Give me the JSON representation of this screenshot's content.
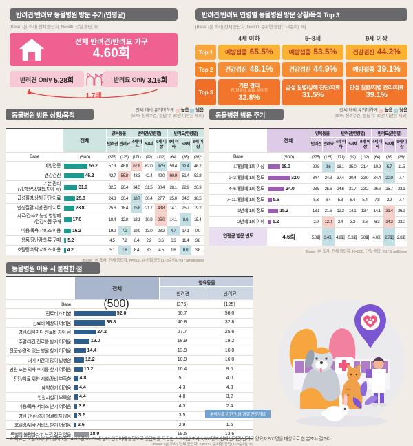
{
  "colors": {
    "accent_pink": "#ee6191",
    "light_pink": "#f7c9d6",
    "sig_high_bg": "#f6d0c8",
    "sig_low_bg": "#c2dfe6",
    "teal_bar": "#1b9b90",
    "teal_header": "#cfe5e1",
    "purple_bar": "#9b5fb0",
    "purple_header": "#ddcbe7",
    "navy_bar": "#2d5e8c",
    "gray_bar": "#8f9296",
    "top1_orange": "#f9b232",
    "top2_orange": "#f68d35",
    "top3_orange": "#f1762c",
    "title_bar_gray": "#69696c",
    "ratio_red": "#e8403a"
  },
  "sig_legend": {
    "prefix": "전체 대비 유의미하게",
    "high": "높음",
    "low": "낮음",
    "note": "(80% 신뢰수준, 응답 수 30건 미만은 제외)"
  },
  "chart_data": [
    {
      "type": "bar",
      "title": "반려견/반려묘 동물병원 방문 주기(연평균)",
      "base_note": "[Base: (본 조사) 전체 응답자, N=500, 단일 응답, %]",
      "total": {
        "label": "전체 반려견/반려묘 가구",
        "value": "4.60회"
      },
      "categories": [
        "전체 반려견/반려묘 가구",
        "반려견 Only",
        "반려묘 Only"
      ],
      "values": [
        4.6,
        5.28,
        3.16
      ],
      "unit": "회",
      "dog_only_label": "반려견 Only",
      "dog_only_value": "5.28회",
      "cat_only_label": "반려묘 Only",
      "cat_only_value": "3.16회",
      "ratio_label": "1.7배"
    },
    {
      "type": "table",
      "title": "반려견/반려묘 연령별 동물병원 방문 상황/목적 Top 3",
      "base_note": "[Base: (본 조사) 전체 응답자, N=500, 순위형 응답(1~3순위), %]",
      "age_groups": [
        "4세 이하",
        "5~8세",
        "9세 이상"
      ],
      "rows": [
        {
          "rank": "Top 1",
          "cells": [
            {
              "label": "예방접종",
              "value": "65.5%"
            },
            {
              "label": "예방접종",
              "value": "53.5%"
            },
            {
              "label": "건강검진",
              "value": "44.2%"
            }
          ]
        },
        {
          "rank": "Top 2",
          "cells": [
            {
              "label": "건강검진",
              "value": "48.1%"
            },
            {
              "label": "건강검진",
              "value": "44.9%"
            },
            {
              "label": "예방접종",
              "value": "39.1%"
            }
          ]
        },
        {
          "rank": "Top 3",
          "cells": [
            {
              "label": "기본 관리",
              "sub": "귀, 항문낭, 발톱, 치아 등",
              "value": "32.8%"
            },
            {
              "label": "급성 질병/상해 진단/치료",
              "value": "31.5%"
            },
            {
              "label": "만성 질환/지병 관리/치료",
              "value": "39.1%"
            }
          ]
        }
      ]
    },
    {
      "type": "table",
      "title": "동물병원 방문 상황/목적",
      "total_label": "전체",
      "col_groups": [
        "양육동물",
        "반려견(연령별)",
        "반려묘(연령별)"
      ],
      "columns": [
        "반려견",
        "반려묘",
        "4세 이하",
        "5-8세",
        "9세 이상",
        "4세 이하",
        "5-8세",
        "9세 이상"
      ],
      "base_row": {
        "label": "Base",
        "total": "(500)",
        "cells": [
          "(375)",
          "(125)",
          "(171)",
          "(92)",
          "(112)",
          "(64)",
          "(35)",
          "(26)*"
        ]
      },
      "rows": [
        {
          "label": "예방접종",
          "total": 55.2,
          "cells": [
            "57.3",
            "48.8",
            "67.8+",
            "62.0",
            "37.5-",
            "59.4",
            "31.4-",
            "46.2"
          ]
        },
        {
          "label": "건강검진",
          "total": 46.2,
          "cells": [
            "42.7",
            "56.8+",
            "43.3",
            "42.4",
            "42.0",
            "60.9+",
            "51.4",
            "53.8"
          ]
        },
        {
          "label": "기본 관리\n(귀,항문낭,발톱,치아 등)",
          "total": 31.0,
          "cells": [
            "32.5",
            "26.4",
            "34.5",
            "31.5",
            "30.4",
            "28.1",
            "22.9",
            "26.9"
          ]
        },
        {
          "label": "급성질병/상해 진단/치료",
          "total": 25.8,
          "cells": [
            "24.3",
            "30.4",
            "18.7-",
            "30.4",
            "27.7",
            "25.0",
            "34.3",
            "38.5"
          ]
        },
        {
          "label": "만성질환/지병 관리/치료",
          "total": 23.8,
          "cells": [
            "25.6",
            "18.4",
            "15.8-",
            "21.7",
            "43.8+",
            "14.1",
            "25.7",
            "19.2"
          ]
        },
        {
          "label": "사료/간식/기능성 영양제\n/건강식품 구매",
          "total": 17.0,
          "cells": [
            "18.4",
            "12.8",
            "18.1",
            "10.9",
            "25.0+",
            "14.1",
            "8.6-",
            "15.4"
          ]
        },
        {
          "label": "미용/목욕 서비스 이용",
          "total": 16.2,
          "cells": [
            "19.2",
            "7.2-",
            "19.9",
            "13.0",
            "23.2",
            "4.7-",
            "17.1",
            "0.0"
          ]
        },
        {
          "label": "용품/장난감/의류 구매",
          "total": 5.2,
          "cells": [
            "4.5",
            "7.2",
            "6.4",
            "2.2",
            "3.6",
            "6.3",
            "11.4",
            "3.8"
          ]
        },
        {
          "label": "호텔링/위탁 서비스 이용",
          "total": 4.2,
          "cells": [
            "5.1",
            "1.6-",
            "6.4",
            "3.3",
            "4.5",
            "1.6",
            "0.0-",
            "3.8"
          ]
        }
      ],
      "footer": "[Base: (본 조사) 전체 응답자, N=500, 순위형 응답(1~3순위), %]",
      "small_base": "*Small base"
    },
    {
      "type": "table",
      "title": "동물병원 방문 주기",
      "total_label": "전체",
      "col_groups": [
        "양육동물",
        "반려견(연령별)",
        "반려묘(연령별)"
      ],
      "columns": [
        "반려견",
        "반려묘",
        "4세 이하",
        "5-8세",
        "9세 이상",
        "4세 이하",
        "5-8세",
        "9세 이상"
      ],
      "base_row": {
        "label": "Base",
        "total": "(500)",
        "cells": [
          "(375)",
          "(125)",
          "(171)",
          "(92)",
          "(112)",
          "(64)",
          "(35)",
          "(26)*"
        ]
      },
      "rows": [
        {
          "label": "1개월에 1회 이상",
          "total": 18.0,
          "cells": [
            "20.8",
            "9.6-",
            "18.1",
            "25.0",
            "21.4",
            "10.9",
            "5.7-",
            "11.5"
          ]
        },
        {
          "label": "2~3개월에 1회 정도",
          "total": 32.0,
          "cells": [
            "34.4",
            "24.8",
            "37.4",
            "30.4",
            "33.0",
            "34.4",
            "20.0-",
            "7.7"
          ]
        },
        {
          "label": "4~6개월에 1회 정도",
          "total": 24.0,
          "cells": [
            "23.5",
            "25.6",
            "24.6",
            "21.7",
            "23.2",
            "26.6",
            "25.7",
            "23.1"
          ]
        },
        {
          "label": "7~11개월에 1회 정도",
          "total": 5.6,
          "cells": [
            "5.3",
            "6.4",
            "5.3",
            "5.4",
            "5.4",
            "7.8",
            "2.9",
            "7.7"
          ]
        },
        {
          "label": "1년에 1회 정도",
          "total": 15.2,
          "cells": [
            "13.1",
            "21.6",
            "12.3",
            "14.1",
            "13.4",
            "14.1",
            "31.4+",
            "26.9"
          ]
        },
        {
          "label": "2년에 1회 이하",
          "total": 5.2,
          "cells": [
            "2.9",
            "12.0+",
            "2.4",
            "3.3",
            "3.6",
            "6.3",
            "14.3+",
            "23.0"
          ]
        }
      ],
      "avg_row": {
        "label": "연평균 방문 빈도",
        "total": "4.6회",
        "cells": [
          "5.0회",
          "3.4회-",
          "4.9회",
          "5.3회",
          "5.0회",
          "4.0회",
          "2.7회-",
          "2.8회"
        ]
      },
      "footer": "[Base: (본 조사) 전체 응답자, N=500, 단일 응답, %]",
      "small_base": "*Small base"
    },
    {
      "type": "bar",
      "title": "동물병원 이용 시 불편한 점",
      "total_label": "전체",
      "col_group": "양육동물",
      "columns": [
        "반려견",
        "반려묘"
      ],
      "base_row": {
        "label": "Base",
        "total": "(500)",
        "cells": [
          "(375)",
          "(125)"
        ]
      },
      "rows": [
        {
          "label": "진료비가 비쌈",
          "total": 52.0,
          "cells": [
            "50.7",
            "56.0"
          ]
        },
        {
          "label": "진료비 예상이 어려움",
          "total": 38.8,
          "cells": [
            "40.8",
            "32.8"
          ]
        },
        {
          "label": "병원/의사마다 진료비 차이 큼",
          "total": 27.2,
          "cells": [
            "27.7",
            "25.6"
          ]
        },
        {
          "label": "주말/야간 진료를 받기 어려움",
          "total": 19.0,
          "cells": [
            "18.9",
            "19.2"
          ]
        },
        {
          "label": "전문성/경력 있는 병원 찾기 어려움",
          "total": 14.4,
          "cells": [
            "13.9",
            "16.0"
          ]
        },
        {
          "label": "대기 시간이 많이 발생함",
          "total": 12.2,
          "cells": [
            "10.9",
            "16.0"
          ]
        },
        {
          "label": "병원 또는 의사 후기를 찾기 어려움",
          "total": 10.2,
          "cells": [
            "10.4",
            "9.6"
          ]
        },
        {
          "label": "진단/치료 위한 시설/장비 부족함",
          "total": 4.8,
          "cells": [
            "5.1",
            "4.0"
          ]
        },
        {
          "label": "예약하기 어려움",
          "total": 4.4,
          "cells": [
            "4.3",
            "4.8"
          ]
        },
        {
          "label": "입원시설이 부족함",
          "total": 4.4,
          "cells": [
            "4.8",
            "3.2"
          ]
        },
        {
          "label": "미용/목욕 서비스 받기 어려움",
          "total": 3.8,
          "cells": [
            "4.3",
            "2.4"
          ]
        },
        {
          "label": "병원 안 환경이 청결하지 않음",
          "total": 3.2,
          "cells": [
            "3.5",
            "2.4"
          ]
        },
        {
          "label": "호텔링/위탁 서비스 받기 어려움",
          "total": 2.6,
          "cells": [
            "2.9",
            "1.6"
          ]
        },
        {
          "label": "특별히 불편하다고 느낀 점은 없음",
          "total": 18.0,
          "cells": [
            "19.5",
            "13.6"
          ],
          "muted": true
        }
      ],
      "footer": "[Base: (본 조사) 전체 응답자, N=500, 순위형 응답(1~3순위), %]"
    }
  ],
  "watermark": {
    "text": "수의사를 위한 임상·경영 전문저널"
  },
  "footnote": {
    "text": "※ 자료는 오픈서베이가 올해 7월 14~16일 20~59세 남녀 인구비례 할당으로 응답자를 모집한 스크리닝 조사 3,200명과 현재 반려견·반려묘 양육자 500명을 대상으로 한 본조사 결과다."
  }
}
